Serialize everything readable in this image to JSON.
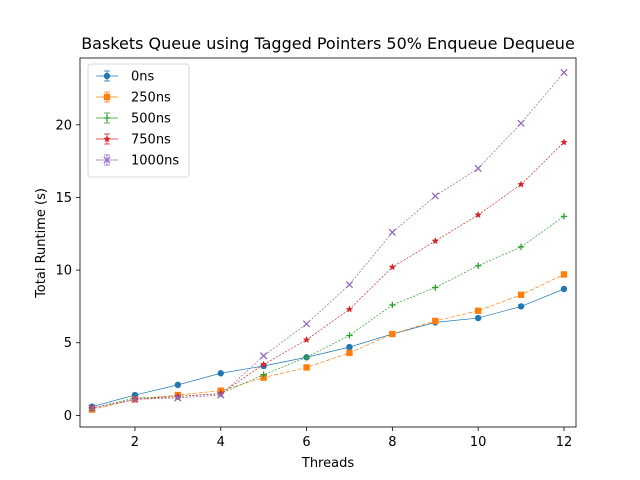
{
  "chart_data": {
    "type": "line",
    "title": "Baskets Queue using Tagged Pointers 50% Enqueue Dequeue",
    "xlabel": "Threads",
    "ylabel": "Total Runtime (s)",
    "xlim": [
      0.72,
      12.28
    ],
    "ylim": [
      -0.8,
      24.6
    ],
    "x_ticks": [
      2,
      4,
      6,
      8,
      10,
      12
    ],
    "y_ticks": [
      0,
      5,
      10,
      15,
      20
    ],
    "grid": false,
    "legend_placement": "upper-left",
    "x": [
      1,
      2,
      3,
      4,
      5,
      6,
      7,
      8,
      9,
      10,
      11,
      12
    ],
    "series": [
      {
        "name": "0ns",
        "color": "#1f77b4",
        "marker": "circle",
        "values": [
          0.6,
          1.4,
          2.1,
          2.9,
          3.4,
          4.0,
          4.7,
          5.6,
          6.4,
          6.7,
          7.5,
          8.7
        ]
      },
      {
        "name": "250ns",
        "color": "#ff7f0e",
        "marker": "square",
        "values": [
          0.4,
          1.1,
          1.4,
          1.7,
          2.6,
          3.3,
          4.3,
          5.6,
          6.5,
          7.2,
          8.3,
          9.7
        ]
      },
      {
        "name": "500ns",
        "color": "#2ca02c",
        "marker": "plus",
        "values": [
          0.5,
          1.2,
          1.3,
          1.5,
          2.8,
          4.0,
          5.5,
          7.6,
          8.8,
          10.3,
          11.6,
          13.7
        ]
      },
      {
        "name": "750ns",
        "color": "#d62728",
        "marker": "star",
        "values": [
          0.5,
          1.1,
          1.3,
          1.5,
          3.5,
          5.2,
          7.3,
          10.2,
          12.0,
          13.8,
          15.9,
          18.8
        ]
      },
      {
        "name": "1000ns",
        "color": "#9467bd",
        "marker": "x",
        "values": [
          0.5,
          1.1,
          1.2,
          1.4,
          4.1,
          6.3,
          9.0,
          12.6,
          15.1,
          17.0,
          20.1,
          23.6
        ]
      }
    ]
  }
}
